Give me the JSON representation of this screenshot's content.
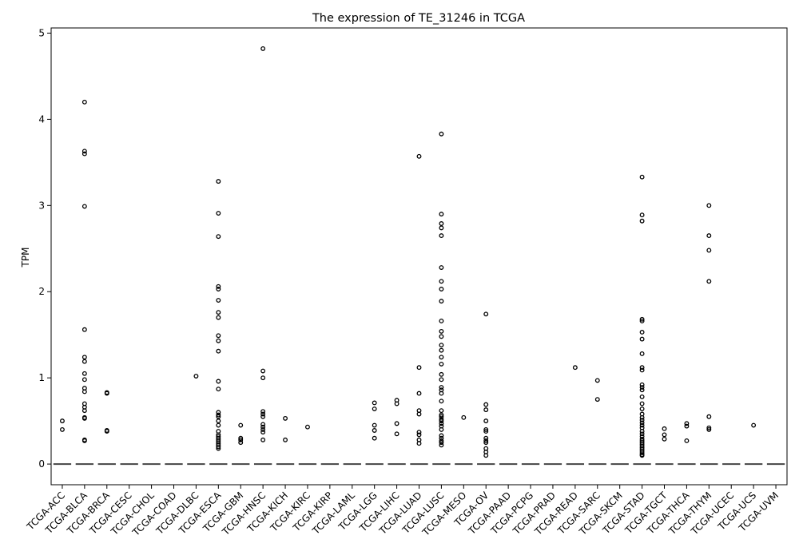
{
  "chart_data": {
    "type": "box",
    "title": "The expression of TE_31246 in TCGA",
    "xlabel": "",
    "ylabel": "TPM",
    "ylim": [
      -0.24,
      5.06
    ],
    "yticks": [
      0,
      1,
      2,
      3,
      4,
      5
    ],
    "grid": false,
    "categories": [
      "TCGA-ACC",
      "TCGA-BLCA",
      "TCGA-BRCA",
      "TCGA-CESC",
      "TCGA-CHOL",
      "TCGA-COAD",
      "TCGA-DLBC",
      "TCGA-ESCA",
      "TCGA-GBM",
      "TCGA-HNSC",
      "TCGA-KICH",
      "TCGA-KIRC",
      "TCGA-KIRP",
      "TCGA-LAML",
      "TCGA-LGG",
      "TCGA-LIHC",
      "TCGA-LUAD",
      "TCGA-LUSC",
      "TCGA-MESO",
      "TCGA-OV",
      "TCGA-PAAD",
      "TCGA-PCPG",
      "TCGA-PRAD",
      "TCGA-READ",
      "TCGA-SARC",
      "TCGA-SKCM",
      "TCGA-STAD",
      "TCGA-TGCT",
      "TCGA-THCA",
      "TCGA-THYM",
      "TCGA-UCEC",
      "TCGA-UCS",
      "TCGA-UVM"
    ],
    "medians": [
      0,
      0,
      0,
      0,
      0,
      0,
      0,
      0,
      0,
      0,
      0,
      0,
      0,
      0,
      0,
      0,
      0,
      0,
      0,
      0,
      0,
      0,
      0,
      0,
      0,
      0,
      0,
      0,
      0,
      0,
      0,
      0,
      0
    ],
    "outliers": [
      [
        0.5,
        0.4
      ],
      [
        4.2,
        3.63,
        3.6,
        2.99,
        1.56,
        1.24,
        1.19,
        1.05,
        0.98,
        0.88,
        0.84,
        0.7,
        0.66,
        0.62,
        0.54,
        0.53,
        0.28,
        0.27
      ],
      [
        0.83,
        0.82,
        0.39,
        0.38
      ],
      [],
      [],
      [],
      [
        1.02
      ],
      [
        3.28,
        2.91,
        2.64,
        2.06,
        2.03,
        1.9,
        1.76,
        1.7,
        1.49,
        1.43,
        1.31,
        0.96,
        0.87,
        0.6,
        0.57,
        0.55,
        0.5,
        0.45,
        0.38,
        0.34,
        0.32,
        0.3,
        0.28,
        0.26,
        0.24,
        0.22,
        0.2,
        0.18
      ],
      [
        0.45,
        0.3,
        0.28,
        0.25
      ],
      [
        4.82,
        1.08,
        1.0,
        0.61,
        0.58,
        0.55,
        0.46,
        0.43,
        0.4,
        0.37,
        0.28
      ],
      [
        0.53,
        0.28
      ],
      [
        0.43
      ],
      [],
      [],
      [
        0.71,
        0.64,
        0.45,
        0.39,
        0.3
      ],
      [
        0.74,
        0.7,
        0.47,
        0.35
      ],
      [
        3.57,
        1.12,
        0.82,
        0.62,
        0.58,
        0.37,
        0.34,
        0.28,
        0.24
      ],
      [
        3.83,
        2.9,
        2.79,
        2.74,
        2.65,
        2.28,
        2.12,
        2.03,
        1.89,
        1.66,
        1.54,
        1.48,
        1.38,
        1.32,
        1.24,
        1.16,
        1.04,
        0.98,
        0.89,
        0.86,
        0.82,
        0.73,
        0.62,
        0.57,
        0.55,
        0.52,
        0.5,
        0.47,
        0.44,
        0.4,
        0.33,
        0.3,
        0.27,
        0.25,
        0.22
      ],
      [
        0.54
      ],
      [
        1.74,
        0.69,
        0.63,
        0.5,
        0.4,
        0.38,
        0.3,
        0.27,
        0.25,
        0.18,
        0.14,
        0.1
      ],
      [],
      [],
      [],
      [
        1.12
      ],
      [
        0.97,
        0.75
      ],
      [],
      [
        3.33,
        2.89,
        2.82,
        1.68,
        1.66,
        1.53,
        1.45,
        1.28,
        1.12,
        1.09,
        0.92,
        0.89,
        0.86,
        0.78,
        0.7,
        0.64,
        0.58,
        0.54,
        0.51,
        0.48,
        0.45,
        0.42,
        0.38,
        0.35,
        0.32,
        0.29,
        0.27,
        0.25,
        0.23,
        0.21,
        0.19,
        0.17,
        0.15,
        0.13,
        0.11,
        0.1
      ],
      [
        0.41,
        0.34,
        0.29
      ],
      [
        0.47,
        0.44,
        0.27
      ],
      [
        3.0,
        2.65,
        2.48,
        2.12,
        0.55,
        0.42,
        0.4
      ],
      [],
      [
        0.45
      ],
      []
    ]
  }
}
